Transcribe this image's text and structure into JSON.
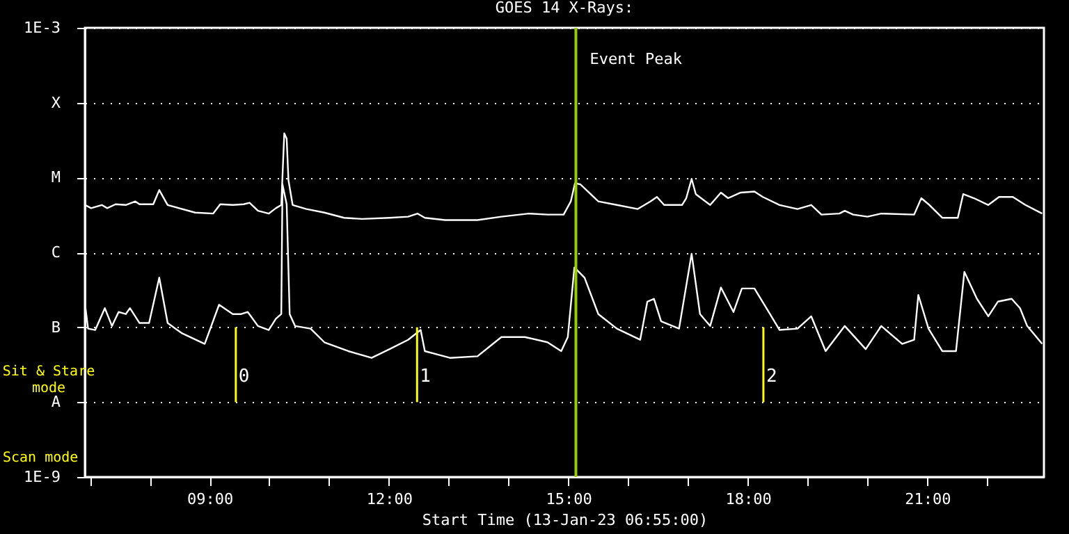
{
  "chart_data": {
    "type": "line",
    "title": "GOES 14 X-Rays:",
    "xlabel": "Start Time (13-Jan-23 06:55:00)",
    "xlim": [
      6.917,
      22.95
    ],
    "xticks": [
      {
        "value": 7,
        "label": null
      },
      {
        "value": 8,
        "label": null
      },
      {
        "value": 9,
        "label": "09:00"
      },
      {
        "value": 10,
        "label": null
      },
      {
        "value": 11,
        "label": null
      },
      {
        "value": 12,
        "label": "12:00"
      },
      {
        "value": 13,
        "label": null
      },
      {
        "value": 14,
        "label": null
      },
      {
        "value": 15,
        "label": "15:00"
      },
      {
        "value": 16,
        "label": null
      },
      {
        "value": 17,
        "label": null
      },
      {
        "value": 18,
        "label": "18:00"
      },
      {
        "value": 19,
        "label": null
      },
      {
        "value": 20,
        "label": null
      },
      {
        "value": 21,
        "label": "21:00"
      },
      {
        "value": 22,
        "label": null
      }
    ],
    "ylim": [
      1e-09,
      0.001
    ],
    "log": true,
    "yticks": [
      {
        "value": 1e-09,
        "label": "1E-9"
      },
      {
        "value": 1e-08,
        "label": "A"
      },
      {
        "value": 1e-07,
        "label": "B"
      },
      {
        "value": 1e-06,
        "label": "C"
      },
      {
        "value": 1e-05,
        "label": "M"
      },
      {
        "value": 0.0001,
        "label": "X"
      },
      {
        "value": 0.001,
        "label": "1E-3"
      }
    ],
    "grid": "y",
    "line_style": "solid",
    "marker": "none",
    "series": [
      {
        "color": "#ffffff",
        "x": [
          6.92,
          7.02,
          7.2,
          7.29,
          7.43,
          7.6,
          7.76,
          7.83,
          8.06,
          8.16,
          8.3,
          8.76,
          9.06,
          9.18,
          9.39,
          9.57,
          9.67,
          9.81,
          9.99,
          10.11,
          10.2,
          10.25,
          10.29,
          10.32,
          10.39,
          10.62,
          10.92,
          11.25,
          11.55,
          12.01,
          12.32,
          12.48,
          12.6,
          12.94,
          13.48,
          13.88,
          14.34,
          14.65,
          14.92,
          15.04,
          15.11,
          15.2,
          15.5,
          15.81,
          16.16,
          16.37,
          16.48,
          16.6,
          16.9,
          16.97,
          17.06,
          17.13,
          17.37,
          17.55,
          17.67,
          17.88,
          18.11,
          18.25,
          18.53,
          18.83,
          19.06,
          19.23,
          19.53,
          19.62,
          19.76,
          20.0,
          20.23,
          20.78,
          20.9,
          21.02,
          21.25,
          21.51,
          21.6,
          21.78,
          22.02,
          22.2,
          22.43,
          22.64,
          22.92
        ],
        "values": [
          4.3e-06,
          3.9e-06,
          4.3e-06,
          3.9e-06,
          4.4e-06,
          4.3e-06,
          4.8e-06,
          4.4e-06,
          4.4e-06,
          6.8e-06,
          4.3e-06,
          3.4e-06,
          3.3e-06,
          4.4e-06,
          4.3e-06,
          4.4e-06,
          4.6e-06,
          3.6e-06,
          3.3e-06,
          3.9e-06,
          4.3e-06,
          3.9e-05,
          3.3e-05,
          9.2e-06,
          4.3e-06,
          3.8e-06,
          3.4e-06,
          2.9e-06,
          2.8e-06,
          2.9e-06,
          3e-06,
          3.3e-06,
          2.9e-06,
          2.7e-06,
          2.7e-06,
          3e-06,
          3.3e-06,
          3.2e-06,
          3.2e-06,
          4.8e-06,
          8.4e-06,
          8.1e-06,
          4.8e-06,
          4.3e-06,
          3.8e-06,
          4.8e-06,
          5.5e-06,
          4.3e-06,
          4.3e-06,
          5.3e-06,
          9.6e-06,
          6e-06,
          4.3e-06,
          6.3e-06,
          5.3e-06,
          6.3e-06,
          6.5e-06,
          5.5e-06,
          4.3e-06,
          3.8e-06,
          4.3e-06,
          3.2e-06,
          3.3e-06,
          3.6e-06,
          3.2e-06,
          3e-06,
          3.3e-06,
          3.2e-06,
          5.3e-06,
          4.4e-06,
          2.9e-06,
          2.9e-06,
          6e-06,
          5.3e-06,
          4.3e-06,
          5.5e-06,
          5.5e-06,
          4.3e-06,
          3.3e-06
        ]
      },
      {
        "color": "#ffffff",
        "x": [
          6.92,
          6.97,
          7.09,
          7.25,
          7.37,
          7.48,
          7.6,
          7.67,
          7.83,
          7.99,
          8.16,
          8.3,
          8.53,
          8.92,
          9.16,
          9.39,
          9.53,
          9.64,
          9.81,
          9.99,
          10.11,
          10.2,
          10.22,
          10.29,
          10.34,
          10.43,
          10.69,
          10.92,
          11.32,
          11.71,
          12.01,
          12.32,
          12.53,
          12.6,
          13.02,
          13.48,
          13.88,
          14.27,
          14.65,
          14.88,
          14.99,
          15.1,
          15.27,
          15.5,
          15.81,
          16.2,
          16.32,
          16.43,
          16.55,
          16.85,
          17.06,
          17.2,
          17.37,
          17.55,
          17.76,
          17.9,
          18.11,
          18.37,
          18.53,
          18.83,
          19.06,
          19.3,
          19.62,
          19.97,
          20.23,
          20.58,
          20.78,
          20.85,
          21.02,
          21.25,
          21.48,
          21.62,
          21.83,
          22.02,
          22.18,
          22.41,
          22.55,
          22.67,
          22.92
        ],
        "values": [
          2e-07,
          9.6e-08,
          9.2e-08,
          1.8e-07,
          1.04e-07,
          1.6e-07,
          1.5e-07,
          1.8e-07,
          1.14e-07,
          1.14e-07,
          4.6e-07,
          1.14e-07,
          8.4e-08,
          6e-08,
          2e-07,
          1.5e-07,
          1.5e-07,
          1.6e-07,
          1.04e-07,
          9.2e-08,
          1.3e-07,
          1.5e-07,
          8.1e-06,
          4.4e-06,
          1.5e-07,
          1.04e-07,
          9.6e-08,
          6.3e-08,
          4.8e-08,
          3.9e-08,
          5.1e-08,
          6.8e-08,
          9.2e-08,
          4.8e-08,
          3.9e-08,
          4.1e-08,
          7.4e-08,
          7.4e-08,
          6.3e-08,
          4.8e-08,
          7.4e-08,
          6.3e-07,
          4.6e-07,
          1.5e-07,
          9.6e-08,
          6.8e-08,
          2.2e-07,
          2.4e-07,
          1.2e-07,
          9.6e-08,
          9.6e-07,
          1.5e-07,
          1.04e-07,
          3.4e-07,
          1.6e-07,
          3.3e-07,
          3.3e-07,
          1.5e-07,
          9.2e-08,
          9.6e-08,
          1.4e-07,
          4.8e-08,
          1.04e-07,
          5.1e-08,
          1.04e-07,
          6e-08,
          6.8e-08,
          2.7e-07,
          9.6e-08,
          4.8e-08,
          4.8e-08,
          5.5e-07,
          2.4e-07,
          1.4e-07,
          2.2e-07,
          2.4e-07,
          1.8e-07,
          1.04e-07,
          6e-08
        ]
      }
    ],
    "ref_lines": [
      {
        "axis": "x",
        "value": 15.125,
        "label": "Event Peak",
        "color": "#99cc00"
      },
      {
        "axis": "x",
        "value": 9.44,
        "color": "#ffff00"
      },
      {
        "axis": "x",
        "value": 12.47,
        "color": "#ffff00"
      },
      {
        "axis": "x",
        "value": 18.26,
        "color": "#ffff00"
      }
    ],
    "annotations": [
      "Sit & Stare\nmode",
      "Scan mode",
      {
        "text": "0",
        "x": 9.44,
        "y": 2.2e-08
      },
      {
        "text": "1",
        "x": 12.47,
        "y": 2.2e-08
      },
      {
        "text": "2",
        "x": 18.26,
        "y": 2.2e-08
      }
    ]
  }
}
